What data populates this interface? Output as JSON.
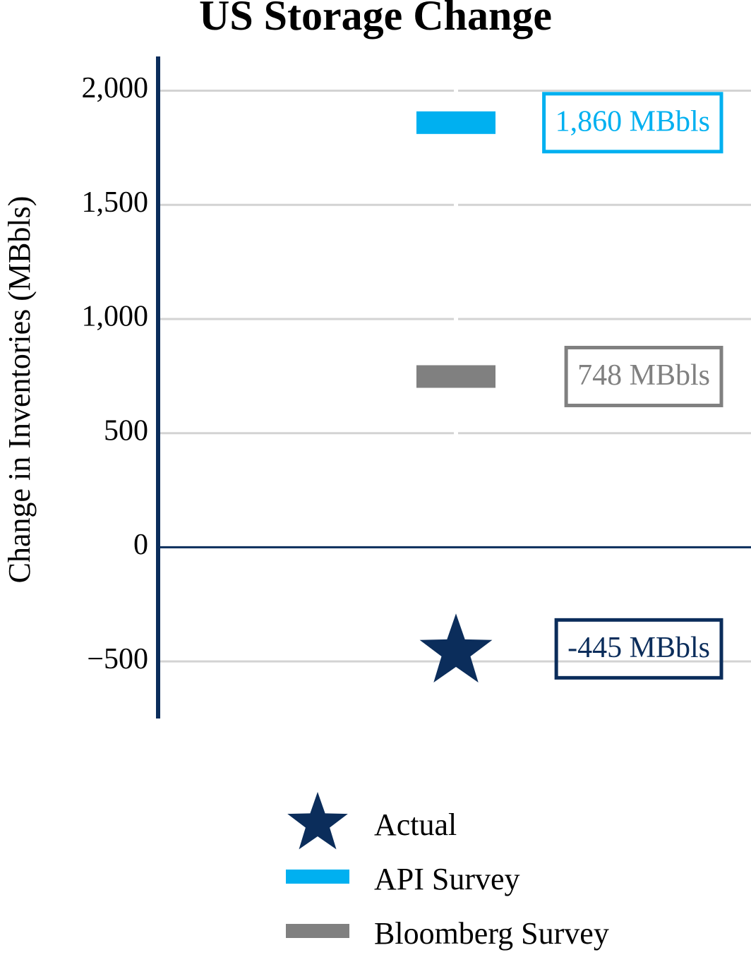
{
  "chart_data": {
    "type": "marker",
    "title": "US Storage Change",
    "y_label": "Change in Inventories (MBbls)",
    "ylim": [
      -750,
      2150
    ],
    "yticks": [
      {
        "value": 2000,
        "label": "2,000"
      },
      {
        "value": 1500,
        "label": "1,500"
      },
      {
        "value": 1000,
        "label": "1,000"
      },
      500,
      0,
      {
        "value": -500,
        "label": "−500"
      }
    ],
    "grid": true,
    "legend": "bottom",
    "series": [
      {
        "name": "Actual",
        "color": "#0b2d5b",
        "marker": "star",
        "values": [
          -445
        ],
        "value_labels": [
          "-445 MBbls"
        ]
      },
      {
        "name": "API Survey",
        "color": "#00b0f0",
        "marker": "dash",
        "values": [
          1860
        ],
        "value_labels": [
          "1,860 MBbls"
        ]
      },
      {
        "name": "Bloomberg Survey",
        "color": "#808080",
        "marker": "dash",
        "values": [
          748
        ],
        "value_labels": [
          "748 MBbls"
        ]
      }
    ]
  }
}
